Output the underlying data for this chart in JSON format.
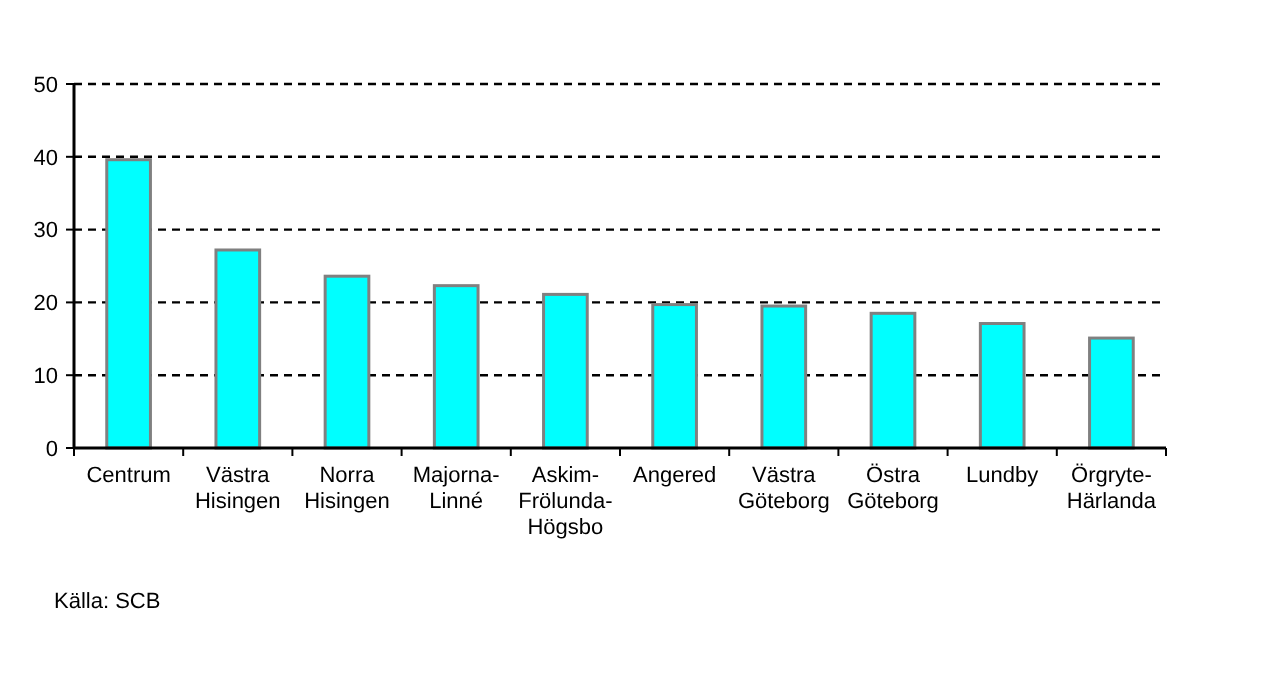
{
  "chart_data": {
    "type": "bar",
    "categories": [
      "Centrum",
      "Västra\nHisingen",
      "Norra\nHisingen",
      "Majorna-\nLinné",
      "Askim-\nFrölunda-\nHögsbo",
      "Angered",
      "Västra\nGöteborg",
      "Östra\nGöteborg",
      "Lundby",
      "Örgryte-\nHärlanda"
    ],
    "values": [
      39.6,
      27.2,
      23.6,
      22.3,
      21.1,
      19.7,
      19.5,
      18.5,
      17.1,
      15.1
    ],
    "color": "#00ffff",
    "ylim": [
      0,
      50
    ],
    "yticks": [
      0,
      10,
      20,
      30,
      40,
      50
    ],
    "grid": "y",
    "annotations": [
      "Källa:  SCB"
    ]
  }
}
